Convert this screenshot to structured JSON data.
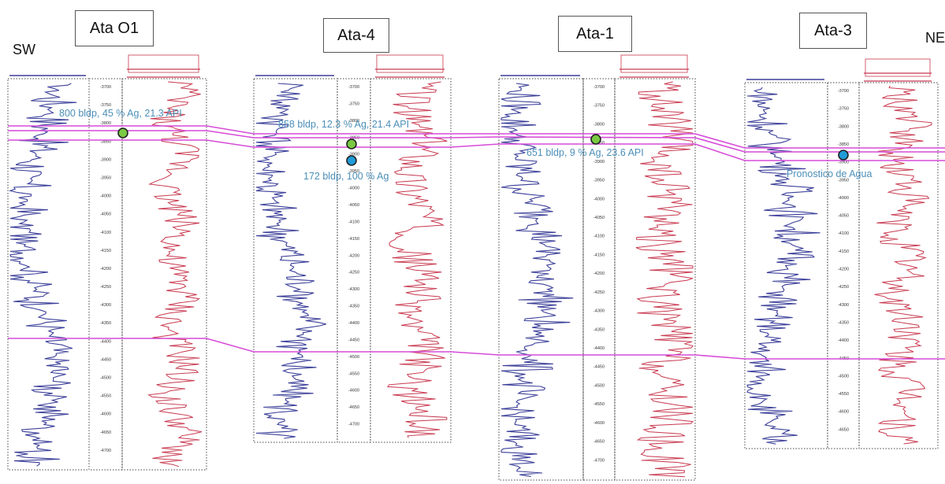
{
  "orientation": {
    "left": "SW",
    "right": "NE"
  },
  "wells": [
    {
      "name": "Ata O1",
      "depth_ticks": [
        "3700",
        "3750",
        "3800",
        "3850",
        "3900",
        "3950",
        "4000",
        "4050",
        "4100",
        "4150",
        "4200",
        "4250",
        "4300",
        "4350",
        "4400",
        "4450",
        "4500",
        "4550",
        "4600",
        "4650",
        "4700"
      ]
    },
    {
      "name": "Ata-4",
      "depth_ticks": [
        "3700",
        "3750",
        "3800",
        "3850",
        "3900",
        "3950",
        "4000",
        "4050",
        "4100",
        "4150",
        "4200",
        "4250",
        "4300",
        "4350",
        "4400",
        "4450",
        "4500",
        "4550",
        "4600",
        "4650",
        "4700"
      ]
    },
    {
      "name": "Ata-1",
      "depth_ticks": [
        "3700",
        "3750",
        "3800",
        "3850",
        "3900",
        "3950",
        "4000",
        "4050",
        "4100",
        "4150",
        "4200",
        "4250",
        "4300",
        "4350",
        "4400",
        "4450",
        "4500",
        "4550",
        "4600",
        "4650",
        "4700"
      ]
    },
    {
      "name": "Ata-3",
      "depth_ticks": [
        "3700",
        "3750",
        "3800",
        "3850",
        "3900",
        "3950",
        "4000",
        "4050",
        "4100",
        "4150",
        "4200",
        "4250",
        "4300",
        "4350",
        "4400",
        "4450",
        "4500",
        "4550",
        "4600",
        "4650"
      ]
    }
  ],
  "annotations": {
    "ata_o1": "800 bldp, 45 % Ag, 21.3 API",
    "ata4_top": "858 bldp, 12.3 % Ag, 21.4 API",
    "ata4_bottom": "172 bldp, 100 % Ag",
    "ata1": "651 bldp, 9 % Ag, 23.6 API",
    "ata3": "Pronostico de Agua"
  },
  "colors": {
    "gr_curve": "#3b3f99",
    "res_curve": "#c8394f",
    "correlation": "#d64bd8",
    "annotation_text": "#4b8fb8",
    "oil_marker": "#7ac943",
    "water_marker": "#1f9bd8"
  }
}
